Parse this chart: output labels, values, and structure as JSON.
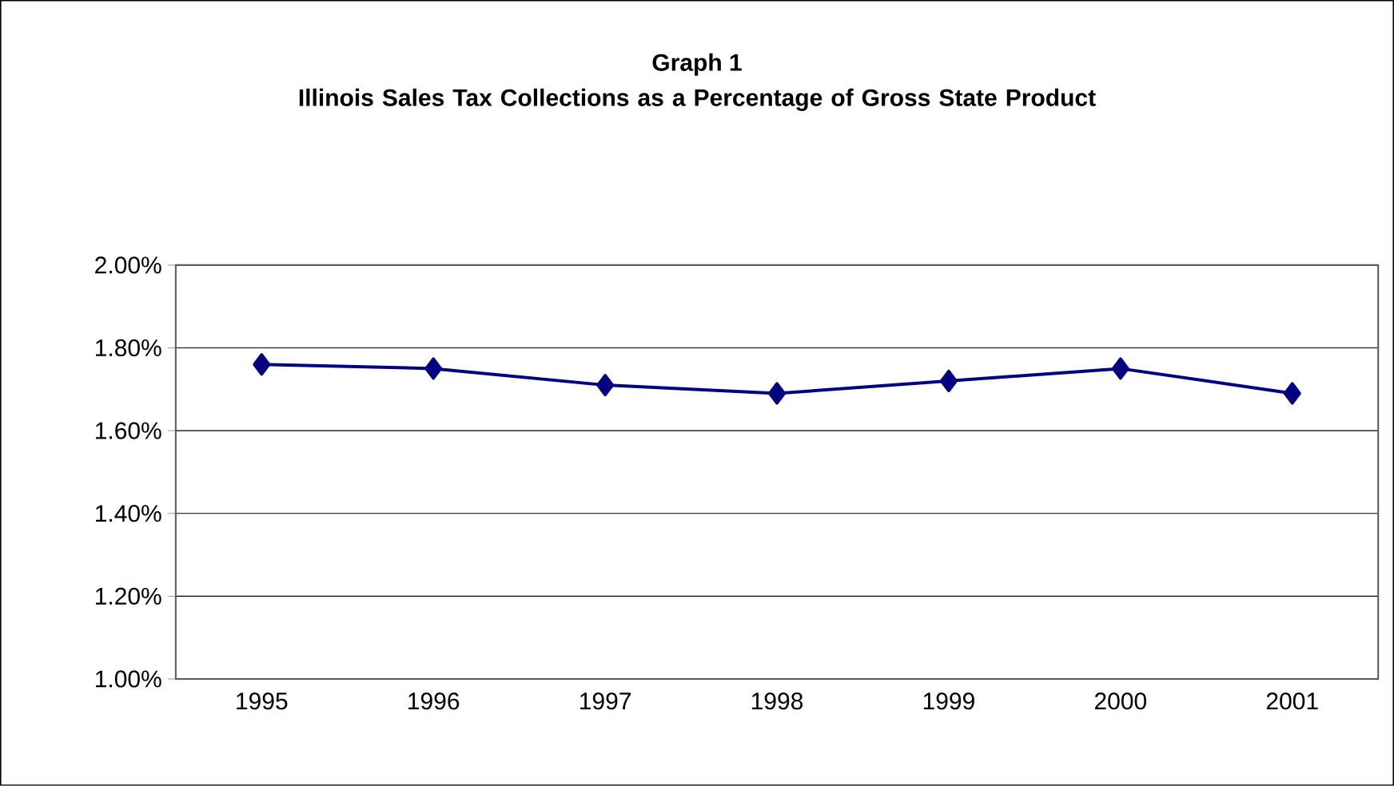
{
  "chart_data": {
    "type": "line",
    "title": "Graph 1",
    "subtitle": "Illinois Sales Tax Collections as a Percentage of Gross State Product",
    "categories": [
      "1995",
      "1996",
      "1997",
      "1998",
      "1999",
      "2000",
      "2001"
    ],
    "values": [
      1.76,
      1.75,
      1.71,
      1.69,
      1.72,
      1.75,
      1.69
    ],
    "color": "#000080",
    "marker": "diamond",
    "line_style": "solid",
    "grid": "y",
    "ylim": [
      1.0,
      2.0
    ],
    "yticks": [
      {
        "value": 1.0,
        "label": "1.00%"
      },
      {
        "value": 1.2,
        "label": "1.20%"
      },
      {
        "value": 1.4,
        "label": "1.40%"
      },
      {
        "value": 1.6,
        "label": "1.60%"
      },
      {
        "value": 1.8,
        "label": "1.80%"
      },
      {
        "value": 2.0,
        "label": "2.00%"
      }
    ]
  }
}
